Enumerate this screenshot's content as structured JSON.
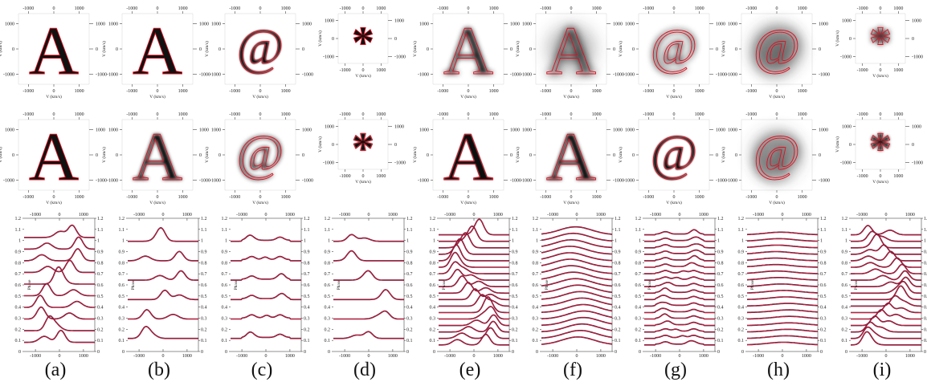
{
  "axis": {
    "v_ticks": [
      "-1000",
      "0",
      "1000"
    ],
    "v_label": "V (km/s)",
    "phase_label": "Phase",
    "phase_ticks": [
      "0",
      "0.1",
      "0.2",
      "0.3",
      "0.4",
      "0.5",
      "0.6",
      "0.7",
      "0.8",
      "0.9",
      "1",
      "1.1",
      "1.2"
    ]
  },
  "panels": [
    {
      "id": "a",
      "caption": "(a)",
      "top_glyph": "A",
      "mid_glyph": "A",
      "top_blur": 0,
      "mid_blur": 0,
      "profile_count": 10,
      "profile_amp": 0.09
    },
    {
      "id": "b",
      "caption": "(b)",
      "top_glyph": "A",
      "mid_glyph": "A",
      "top_blur": 0,
      "mid_blur": 0.6,
      "profile_count": 6,
      "profile_amp": 0.07
    },
    {
      "id": "c",
      "caption": "(c)",
      "top_glyph": "@",
      "mid_glyph": "@",
      "top_blur": 0.3,
      "mid_blur": 0.8,
      "profile_count": 6,
      "profile_amp": 0.04
    },
    {
      "id": "d",
      "caption": "(d)",
      "top_glyph": "*",
      "mid_glyph": "*",
      "top_blur": 0,
      "mid_blur": 0.2,
      "profile_count": 6,
      "profile_amp": 0.05
    },
    {
      "id": "e",
      "caption": "(e)",
      "top_glyph": "A",
      "mid_glyph": "A",
      "top_blur": 0.9,
      "mid_blur": 0.2,
      "profile_count": 18,
      "profile_amp": 0.08
    },
    {
      "id": "f",
      "caption": "(f)",
      "top_glyph": "A",
      "mid_glyph": "A",
      "top_blur": 1.6,
      "mid_blur": 0.6,
      "profile_count": 18,
      "profile_amp": 0.06
    },
    {
      "id": "g",
      "caption": "(g)",
      "top_glyph": "@",
      "mid_glyph": "@",
      "top_blur": 1.2,
      "mid_blur": 0.3,
      "profile_count": 18,
      "profile_amp": 0.03
    },
    {
      "id": "h",
      "caption": "(h)",
      "top_glyph": "@",
      "mid_glyph": "@",
      "top_blur": 2.2,
      "mid_blur": 1.8,
      "profile_count": 18,
      "profile_amp": 0.02
    },
    {
      "id": "i",
      "caption": "(i)",
      "top_glyph": "*",
      "mid_glyph": "*",
      "top_blur": 1.0,
      "mid_blur": 0.5,
      "profile_count": 18,
      "profile_amp": 0.07
    }
  ],
  "colors": {
    "model_line": "#d31a38",
    "data_line": "#3a1030",
    "image_dark": "#111111",
    "contour": "#e01020"
  }
}
